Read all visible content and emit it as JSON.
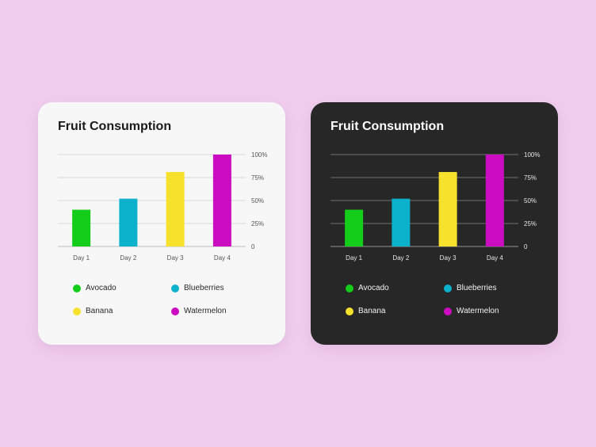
{
  "cards": [
    {
      "theme": "light",
      "title": "Fruit Consumption",
      "chart_data": {
        "type": "bar",
        "title": "Fruit Consumption",
        "categories": [
          "Day 1",
          "Day 2",
          "Day 3",
          "Day 4"
        ],
        "series": [
          {
            "name": "Avocado",
            "color": "#14cc1a",
            "values": [
              40,
              null,
              null,
              null
            ]
          },
          {
            "name": "Blueberries",
            "color": "#0cb1cc",
            "values": [
              null,
              52,
              null,
              null
            ]
          },
          {
            "name": "Banana",
            "color": "#f6e22c",
            "values": [
              null,
              null,
              81,
              null
            ]
          },
          {
            "name": "Watermelon",
            "color": "#cc0cc0",
            "values": [
              null,
              null,
              null,
              100
            ]
          }
        ],
        "y_ticks": [
          "100%",
          "75%",
          "50%",
          "25%",
          "0"
        ],
        "ylim": [
          0,
          100
        ],
        "grid": true,
        "legend_position": "bottom"
      }
    },
    {
      "theme": "dark",
      "title": "Fruit Consumption",
      "chart_data": {
        "type": "bar",
        "title": "Fruit Consumption",
        "categories": [
          "Day 1",
          "Day 2",
          "Day 3",
          "Day 4"
        ],
        "series": [
          {
            "name": "Avocado",
            "color": "#14cc1a",
            "values": [
              40,
              null,
              null,
              null
            ]
          },
          {
            "name": "Blueberries",
            "color": "#0cb1cc",
            "values": [
              null,
              52,
              null,
              null
            ]
          },
          {
            "name": "Banana",
            "color": "#f6e22c",
            "values": [
              null,
              null,
              81,
              null
            ]
          },
          {
            "name": "Watermelon",
            "color": "#cc0cc0",
            "values": [
              null,
              null,
              null,
              100
            ]
          }
        ],
        "y_ticks": [
          "100%",
          "75%",
          "50%",
          "25%",
          "0"
        ],
        "ylim": [
          0,
          100
        ],
        "grid": true,
        "legend_position": "bottom"
      }
    }
  ]
}
